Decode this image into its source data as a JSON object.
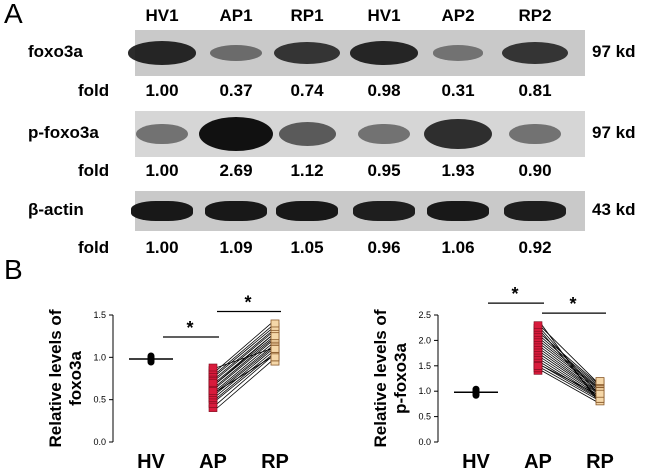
{
  "panel_a": {
    "letter": "A",
    "lanes": [
      "HV1",
      "AP1",
      "RP1",
      "HV1",
      "AP2",
      "RP2"
    ],
    "fold_label": "fold",
    "blots": [
      {
        "protein": "foxo3a",
        "size": "97 kd",
        "band_intensity": [
          0.85,
          0.35,
          0.75,
          0.85,
          0.3,
          0.75
        ],
        "fold": [
          "1.00",
          "0.37",
          "0.74",
          "0.98",
          "0.31",
          "0.81"
        ]
      },
      {
        "protein": "p-foxo3a",
        "size": "97 kd",
        "band_intensity": [
          0.35,
          1.0,
          0.5,
          0.35,
          0.8,
          0.35
        ],
        "fold": [
          "1.00",
          "2.69",
          "1.12",
          "0.95",
          "1.93",
          "0.90"
        ]
      },
      {
        "protein": "β-actin",
        "size": "43 kd",
        "band_intensity": [
          0.95,
          0.95,
          0.95,
          0.9,
          0.95,
          0.9
        ],
        "fold": [
          "1.00",
          "1.09",
          "1.05",
          "0.96",
          "1.06",
          "0.92"
        ]
      }
    ]
  },
  "panel_b": {
    "letter": "B",
    "chart_data": [
      {
        "type": "scatter",
        "ylabel_line1": "Relative levels of",
        "ylabel_line2": "foxo3a",
        "categories": [
          "HV",
          "AP",
          "RP"
        ],
        "ylim": [
          0,
          1.5
        ],
        "yticks": [
          "0.0",
          "0.5",
          "1.0",
          "1.5"
        ],
        "hv_mean": 0.98,
        "paired_ap": [
          0.4,
          0.45,
          0.5,
          0.52,
          0.55,
          0.58,
          0.6,
          0.62,
          0.65,
          0.67,
          0.7,
          0.72,
          0.75,
          0.77,
          0.8,
          0.82,
          0.85,
          0.88,
          0.6,
          0.7
        ],
        "paired_rp": [
          0.95,
          1.0,
          1.02,
          1.05,
          1.08,
          1.1,
          1.12,
          1.15,
          1.18,
          1.2,
          1.22,
          1.25,
          1.28,
          1.3,
          1.33,
          1.36,
          1.4,
          1.1,
          1.0,
          1.25
        ],
        "significance": "*"
      },
      {
        "type": "scatter",
        "ylabel_line1": "Relative levels of",
        "ylabel_line2": "p-foxo3a",
        "categories": [
          "HV",
          "AP",
          "RP"
        ],
        "ylim": [
          0,
          2.5
        ],
        "yticks": [
          "0.0",
          "0.5",
          "1.0",
          "1.5",
          "2.0",
          "2.5"
        ],
        "hv_mean": 0.98,
        "paired_ap": [
          1.4,
          1.45,
          1.5,
          1.55,
          1.6,
          1.65,
          1.7,
          1.75,
          1.8,
          1.85,
          1.9,
          1.95,
          2.0,
          2.05,
          2.1,
          2.15,
          2.2,
          2.25,
          2.3,
          1.5
        ],
        "paired_rp": [
          0.8,
          0.85,
          0.88,
          0.9,
          0.92,
          0.95,
          0.98,
          1.0,
          1.02,
          1.05,
          1.08,
          1.1,
          1.12,
          1.15,
          1.18,
          0.9,
          1.0,
          1.2,
          0.85,
          0.95
        ],
        "significance": "*"
      }
    ]
  }
}
